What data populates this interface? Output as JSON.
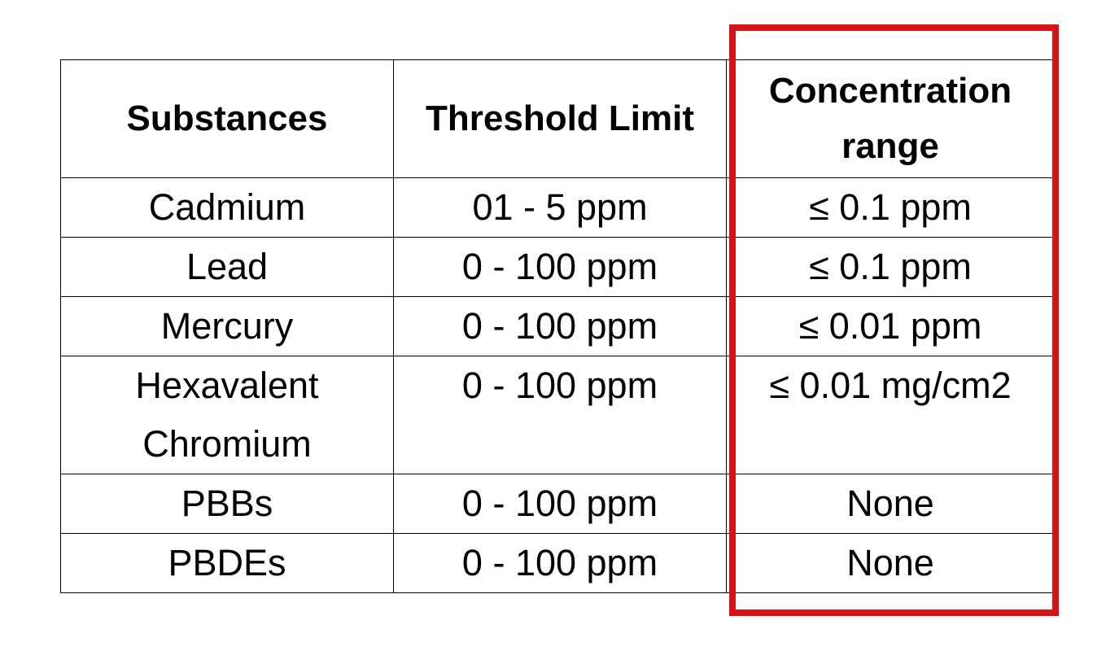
{
  "table": {
    "header": [
      "Substances",
      "Threshold Limit",
      "Concentration range"
    ],
    "rows": [
      [
        "Cadmium",
        "01 - 5 ppm",
        "≤ 0.1 ppm"
      ],
      [
        "Lead",
        "0 - 100 ppm",
        "≤ 0.1 ppm"
      ],
      [
        "Mercury",
        "0 - 100 ppm",
        "≤ 0.01 ppm"
      ],
      [
        "Hexavalent Chromium",
        "0 - 100 ppm",
        "≤ 0.01 mg/cm2"
      ],
      [
        "PBBs",
        "0 - 100 ppm",
        "None"
      ],
      [
        "PBDEs",
        "0 - 100 ppm",
        "None"
      ]
    ]
  }
}
